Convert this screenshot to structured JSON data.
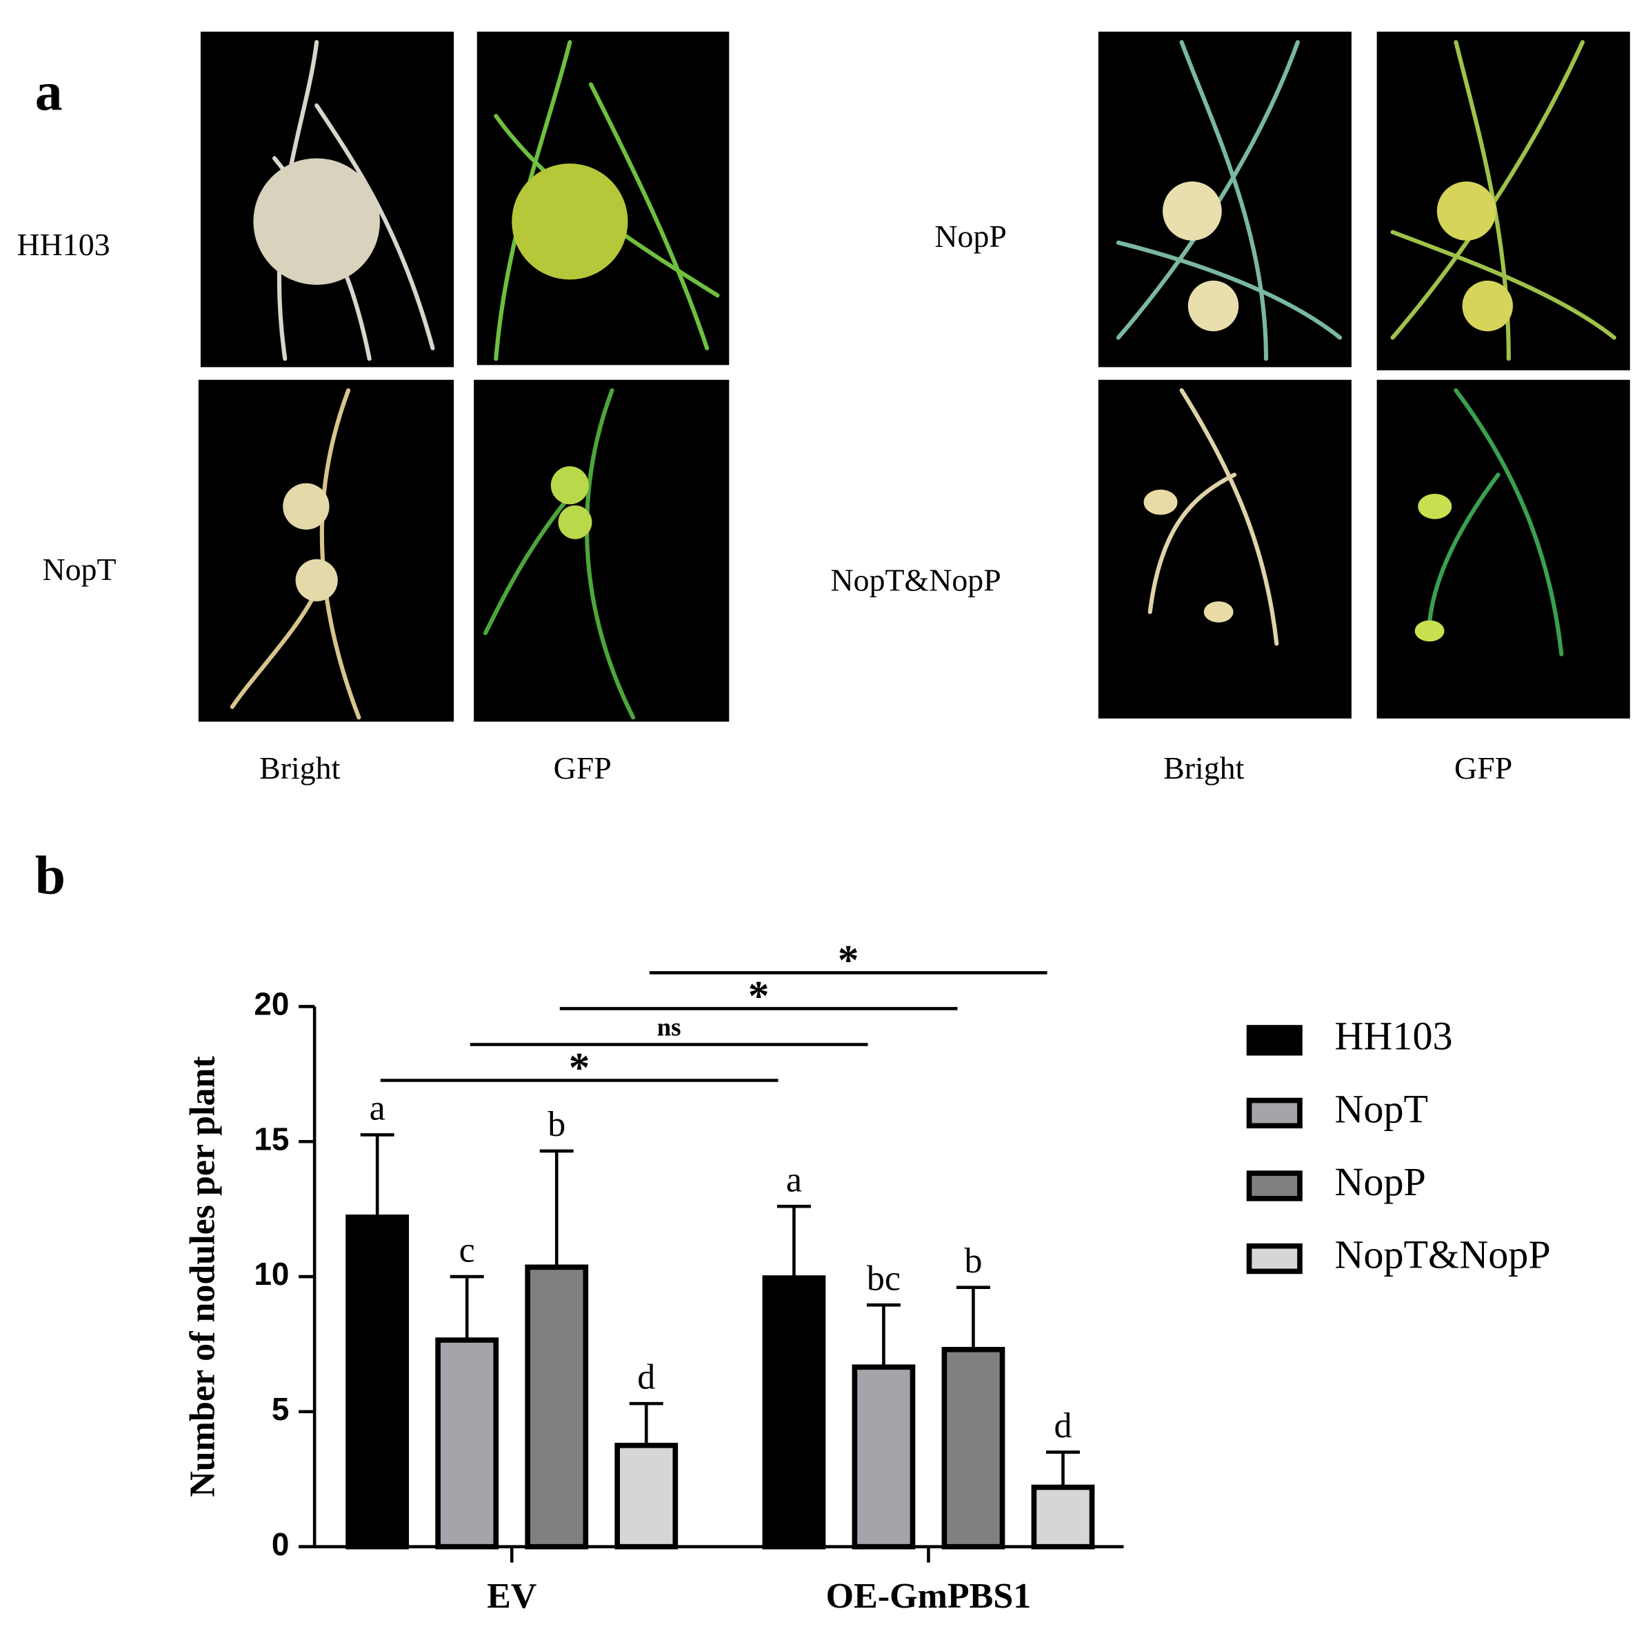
{
  "panel_a": {
    "label": "a",
    "left": {
      "rows": [
        "HH103",
        "NopT"
      ],
      "columns": [
        "Bright",
        "GFP"
      ]
    },
    "right": {
      "rows": [
        "NopP",
        "NopT&NopP"
      ],
      "columns": [
        "Bright",
        "GFP"
      ]
    }
  },
  "chart_data": {
    "type": "bar",
    "panel_label": "b",
    "y_label": "Number of nodules per plant",
    "categories": [
      "EV",
      "OE-GmPBS1"
    ],
    "series": [
      {
        "name": "HH103",
        "color": "#000000",
        "values": [
          12.2,
          9.95
        ],
        "errors": [
          3.05,
          2.65
        ],
        "letters": [
          "a",
          "a"
        ]
      },
      {
        "name": "NopT",
        "color": "#a5a4aa",
        "values": [
          7.65,
          6.65
        ],
        "errors": [
          2.35,
          2.3
        ],
        "letters": [
          "c",
          "bc"
        ]
      },
      {
        "name": "NopP",
        "color": "#808080",
        "values": [
          10.35,
          7.3
        ],
        "errors": [
          4.3,
          2.3
        ],
        "letters": [
          "b",
          "b"
        ]
      },
      {
        "name": "NopT&NopP",
        "color": "#d6d6d6",
        "values": [
          3.75,
          2.2
        ],
        "errors": [
          1.55,
          1.3
        ],
        "letters": [
          "d",
          "d"
        ]
      }
    ],
    "significance": [
      "*",
      "ns",
      "*",
      "*"
    ],
    "ylim": [
      0,
      20
    ],
    "yticks": [
      0,
      5,
      10,
      15,
      20
    ]
  }
}
